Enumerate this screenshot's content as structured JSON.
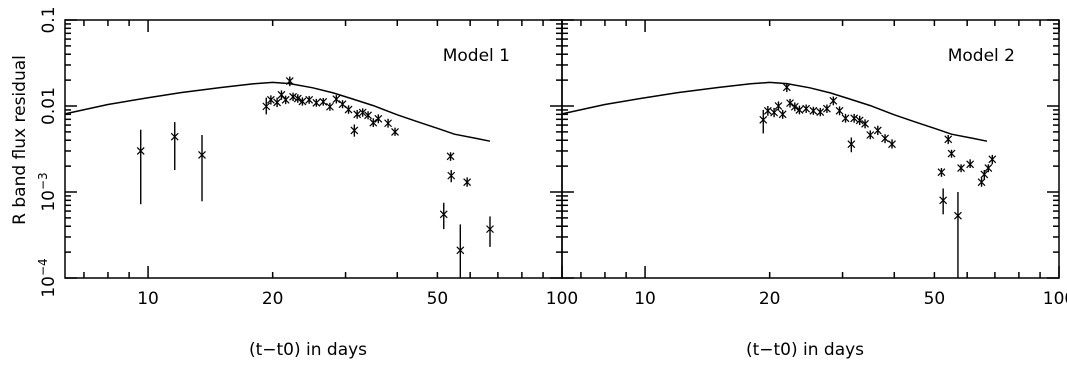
{
  "chart_data": [
    {
      "type": "scatter",
      "panel_label": "Model 1",
      "xlabel": "(t−t0) in days",
      "ylabel": "R band flux residual",
      "xscale": "log",
      "yscale": "log",
      "xlim": [
        6.3,
        100
      ],
      "ylim": [
        0.0001,
        0.1
      ],
      "xticks": [
        {
          "value": 10,
          "label": "10"
        },
        {
          "value": 20,
          "label": "20"
        },
        {
          "value": 50,
          "label": "50"
        },
        {
          "value": 100,
          "label": "100"
        }
      ],
      "yticks": [
        {
          "value": 0.1,
          "label": "0.1"
        },
        {
          "value": 0.01,
          "label": "0.01"
        },
        {
          "value": 0.001,
          "base": "10",
          "exp": "−3"
        },
        {
          "value": 0.0001,
          "base": "10",
          "exp": "−4"
        }
      ],
      "model_curve": {
        "x": [
          6.3,
          8,
          10,
          12,
          15,
          18,
          20,
          22,
          25,
          28,
          31,
          35,
          40,
          45,
          50,
          55,
          62,
          67
        ],
        "y": [
          0.0081,
          0.0104,
          0.0125,
          0.0143,
          0.0164,
          0.0181,
          0.0188,
          0.0182,
          0.0163,
          0.0142,
          0.0122,
          0.0101,
          0.0079,
          0.0065,
          0.0055,
          0.0047,
          0.0042,
          0.0039
        ]
      },
      "points": [
        {
          "x": 9.6,
          "y": 0.003,
          "lo": 0.00072,
          "hi": 0.0053
        },
        {
          "x": 11.6,
          "y": 0.0044,
          "lo": 0.0018,
          "hi": 0.0065
        },
        {
          "x": 13.5,
          "y": 0.0027,
          "lo": 0.00078,
          "hi": 0.0046
        },
        {
          "x": 19.3,
          "y": 0.0099,
          "lo": 0.008,
          "hi": 0.0125
        },
        {
          "x": 19.8,
          "y": 0.0118,
          "lo": 0.0104,
          "hi": 0.0133
        },
        {
          "x": 20.5,
          "y": 0.011,
          "lo": 0.0097,
          "hi": 0.0125
        },
        {
          "x": 21.0,
          "y": 0.0135,
          "lo": 0.0118,
          "hi": 0.0152
        },
        {
          "x": 21.5,
          "y": 0.0118,
          "lo": 0.0105,
          "hi": 0.0132
        },
        {
          "x": 22.0,
          "y": 0.0195,
          "lo": 0.017,
          "hi": 0.022
        },
        {
          "x": 22.4,
          "y": 0.0128,
          "lo": 0.0114,
          "hi": 0.0143
        },
        {
          "x": 23.0,
          "y": 0.0122,
          "lo": 0.0109,
          "hi": 0.0137
        },
        {
          "x": 23.6,
          "y": 0.0113,
          "lo": 0.0101,
          "hi": 0.0126
        },
        {
          "x": 24.5,
          "y": 0.0118,
          "lo": 0.0106,
          "hi": 0.0131
        },
        {
          "x": 25.5,
          "y": 0.0109,
          "lo": 0.0098,
          "hi": 0.0121
        },
        {
          "x": 26.5,
          "y": 0.0112,
          "lo": 0.0101,
          "hi": 0.0124
        },
        {
          "x": 27.5,
          "y": 0.0098,
          "lo": 0.0088,
          "hi": 0.0109
        },
        {
          "x": 28.5,
          "y": 0.012,
          "lo": 0.0107,
          "hi": 0.0134
        },
        {
          "x": 29.5,
          "y": 0.0105,
          "lo": 0.0094,
          "hi": 0.0117
        },
        {
          "x": 30.5,
          "y": 0.0091,
          "lo": 0.0081,
          "hi": 0.0102
        },
        {
          "x": 31.5,
          "y": 0.0052,
          "lo": 0.0044,
          "hi": 0.0061
        },
        {
          "x": 32.0,
          "y": 0.008,
          "lo": 0.0071,
          "hi": 0.009
        },
        {
          "x": 33.0,
          "y": 0.0084,
          "lo": 0.0075,
          "hi": 0.0094
        },
        {
          "x": 34.0,
          "y": 0.0078,
          "lo": 0.007,
          "hi": 0.0087
        },
        {
          "x": 35.0,
          "y": 0.0064,
          "lo": 0.0057,
          "hi": 0.0072
        },
        {
          "x": 36.0,
          "y": 0.0071,
          "lo": 0.0063,
          "hi": 0.008
        },
        {
          "x": 38.0,
          "y": 0.0063,
          "lo": 0.0056,
          "hi": 0.0071
        },
        {
          "x": 39.5,
          "y": 0.005,
          "lo": 0.0045,
          "hi": 0.0056
        },
        {
          "x": 51.8,
          "y": 0.00055,
          "lo": 0.00037,
          "hi": 0.00075
        },
        {
          "x": 53.8,
          "y": 0.0026,
          "lo": 0.0023,
          "hi": 0.0029
        },
        {
          "x": 54.0,
          "y": 0.00155,
          "lo": 0.0013,
          "hi": 0.0018
        },
        {
          "x": 56.8,
          "y": 0.00021,
          "lo": 0.0001,
          "hi": 0.00042
        },
        {
          "x": 59.0,
          "y": 0.0013,
          "lo": 0.00115,
          "hi": 0.00148
        },
        {
          "x": 67.0,
          "y": 0.00037,
          "lo": 0.00023,
          "hi": 0.00052
        }
      ]
    },
    {
      "type": "scatter",
      "panel_label": "Model 2",
      "xlabel": "(t−t0) in days",
      "ylabel": "",
      "xscale": "log",
      "yscale": "log",
      "xlim": [
        6.3,
        100
      ],
      "ylim": [
        0.0001,
        0.1
      ],
      "xticks": [
        {
          "value": 10,
          "label": "10"
        },
        {
          "value": 20,
          "label": "20"
        },
        {
          "value": 50,
          "label": "50"
        },
        {
          "value": 100,
          "label": "100"
        }
      ],
      "yticks": [],
      "model_curve": {
        "x": [
          6.3,
          8,
          10,
          12,
          15,
          18,
          20,
          22,
          25,
          28,
          31,
          35,
          40,
          45,
          50,
          55,
          62,
          67
        ],
        "y": [
          0.0081,
          0.0104,
          0.0125,
          0.0143,
          0.0164,
          0.0181,
          0.0188,
          0.0182,
          0.0163,
          0.0142,
          0.0122,
          0.0101,
          0.0079,
          0.0065,
          0.0055,
          0.0047,
          0.0042,
          0.0039
        ]
      },
      "points": [
        {
          "x": 19.3,
          "y": 0.0069,
          "lo": 0.0048,
          "hi": 0.009
        },
        {
          "x": 19.8,
          "y": 0.0088,
          "lo": 0.0077,
          "hi": 0.01
        },
        {
          "x": 20.5,
          "y": 0.0084,
          "lo": 0.0074,
          "hi": 0.0095
        },
        {
          "x": 21.0,
          "y": 0.01,
          "lo": 0.0088,
          "hi": 0.0113
        },
        {
          "x": 21.5,
          "y": 0.008,
          "lo": 0.0071,
          "hi": 0.009
        },
        {
          "x": 22.0,
          "y": 0.0165,
          "lo": 0.0145,
          "hi": 0.0185
        },
        {
          "x": 22.4,
          "y": 0.0108,
          "lo": 0.0096,
          "hi": 0.0121
        },
        {
          "x": 23.0,
          "y": 0.0098,
          "lo": 0.0087,
          "hi": 0.011
        },
        {
          "x": 23.6,
          "y": 0.009,
          "lo": 0.008,
          "hi": 0.0101
        },
        {
          "x": 24.5,
          "y": 0.0093,
          "lo": 0.0083,
          "hi": 0.0104
        },
        {
          "x": 25.5,
          "y": 0.0088,
          "lo": 0.0079,
          "hi": 0.0098
        },
        {
          "x": 26.5,
          "y": 0.0085,
          "lo": 0.0076,
          "hi": 0.0095
        },
        {
          "x": 27.5,
          "y": 0.0093,
          "lo": 0.0083,
          "hi": 0.0104
        },
        {
          "x": 28.5,
          "y": 0.0115,
          "lo": 0.0102,
          "hi": 0.0129
        },
        {
          "x": 29.5,
          "y": 0.0088,
          "lo": 0.0078,
          "hi": 0.0099
        },
        {
          "x": 30.5,
          "y": 0.0072,
          "lo": 0.0064,
          "hi": 0.0081
        },
        {
          "x": 31.5,
          "y": 0.0036,
          "lo": 0.0029,
          "hi": 0.0043
        },
        {
          "x": 32.0,
          "y": 0.0072,
          "lo": 0.0064,
          "hi": 0.0081
        },
        {
          "x": 33.0,
          "y": 0.0068,
          "lo": 0.006,
          "hi": 0.0077
        },
        {
          "x": 34.0,
          "y": 0.0062,
          "lo": 0.0055,
          "hi": 0.007
        },
        {
          "x": 35.0,
          "y": 0.0046,
          "lo": 0.0041,
          "hi": 0.0052
        },
        {
          "x": 36.5,
          "y": 0.0052,
          "lo": 0.0046,
          "hi": 0.0059
        },
        {
          "x": 38.0,
          "y": 0.0042,
          "lo": 0.0037,
          "hi": 0.0047
        },
        {
          "x": 39.5,
          "y": 0.0036,
          "lo": 0.0032,
          "hi": 0.0041
        },
        {
          "x": 52.0,
          "y": 0.0017,
          "lo": 0.0015,
          "hi": 0.0019
        },
        {
          "x": 52.5,
          "y": 0.0008,
          "lo": 0.00055,
          "hi": 0.0011
        },
        {
          "x": 54.0,
          "y": 0.0041,
          "lo": 0.0036,
          "hi": 0.0046
        },
        {
          "x": 55.0,
          "y": 0.0028,
          "lo": 0.0025,
          "hi": 0.0031
        },
        {
          "x": 57.0,
          "y": 0.00053,
          "lo": 0.0001,
          "hi": 0.001
        },
        {
          "x": 58.0,
          "y": 0.0019,
          "lo": 0.0017,
          "hi": 0.0021
        },
        {
          "x": 61.0,
          "y": 0.0021,
          "lo": 0.0019,
          "hi": 0.0024
        },
        {
          "x": 65.0,
          "y": 0.0013,
          "lo": 0.00115,
          "hi": 0.00145
        },
        {
          "x": 66.0,
          "y": 0.0016,
          "lo": 0.0014,
          "hi": 0.0018
        },
        {
          "x": 67.5,
          "y": 0.0019,
          "lo": 0.0017,
          "hi": 0.0021
        },
        {
          "x": 69.0,
          "y": 0.0024,
          "lo": 0.0021,
          "hi": 0.0027
        }
      ]
    }
  ]
}
